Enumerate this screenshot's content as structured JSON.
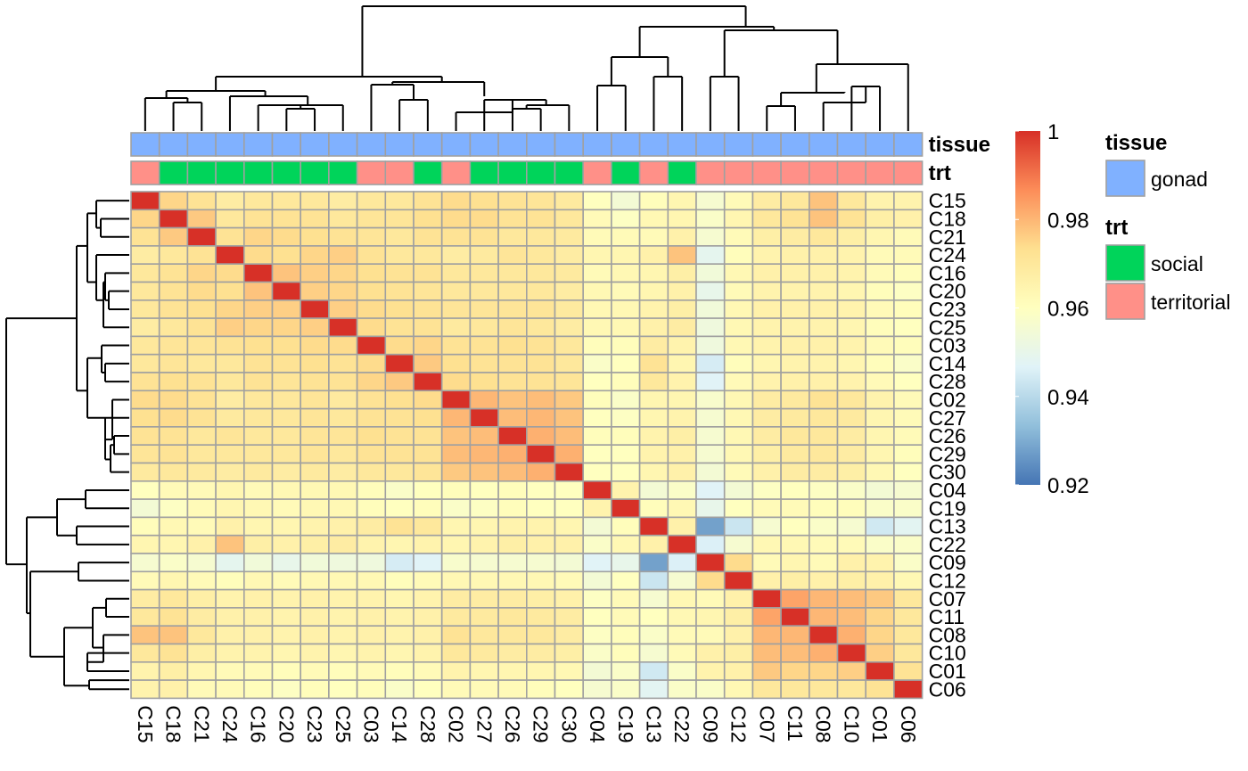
{
  "chart_data": {
    "type": "heatmap",
    "title": "",
    "rows": [
      "C15",
      "C18",
      "C21",
      "C24",
      "C16",
      "C20",
      "C23",
      "C25",
      "C03",
      "C14",
      "C28",
      "C02",
      "C27",
      "C26",
      "C29",
      "C30",
      "C04",
      "C19",
      "C13",
      "C22",
      "C09",
      "C12",
      "C07",
      "C11",
      "C08",
      "C10",
      "C01",
      "C06"
    ],
    "columns": [
      "C15",
      "C18",
      "C21",
      "C24",
      "C16",
      "C20",
      "C23",
      "C25",
      "C03",
      "C14",
      "C28",
      "C02",
      "C27",
      "C26",
      "C29",
      "C30",
      "C04",
      "C19",
      "C13",
      "C22",
      "C09",
      "C12",
      "C07",
      "C11",
      "C08",
      "C10",
      "C01",
      "C06"
    ],
    "values": [
      [
        1.0,
        0.975,
        0.972,
        0.968,
        0.97,
        0.97,
        0.97,
        0.968,
        0.97,
        0.97,
        0.972,
        0.974,
        0.973,
        0.972,
        0.971,
        0.969,
        0.96,
        0.955,
        0.961,
        0.964,
        0.956,
        0.962,
        0.968,
        0.97,
        0.978,
        0.97,
        0.965,
        0.965
      ],
      [
        0.975,
        1.0,
        0.977,
        0.97,
        0.972,
        0.972,
        0.972,
        0.97,
        0.971,
        0.971,
        0.973,
        0.974,
        0.974,
        0.972,
        0.972,
        0.97,
        0.962,
        0.959,
        0.963,
        0.964,
        0.958,
        0.964,
        0.97,
        0.972,
        0.978,
        0.972,
        0.967,
        0.966
      ],
      [
        0.972,
        0.977,
        1.0,
        0.972,
        0.975,
        0.974,
        0.973,
        0.972,
        0.971,
        0.97,
        0.972,
        0.972,
        0.972,
        0.97,
        0.97,
        0.969,
        0.962,
        0.962,
        0.962,
        0.966,
        0.956,
        0.962,
        0.967,
        0.968,
        0.97,
        0.967,
        0.964,
        0.962
      ],
      [
        0.968,
        0.97,
        0.972,
        1.0,
        0.974,
        0.973,
        0.975,
        0.976,
        0.972,
        0.97,
        0.97,
        0.968,
        0.969,
        0.971,
        0.97,
        0.968,
        0.964,
        0.964,
        0.966,
        0.978,
        0.949,
        0.961,
        0.965,
        0.966,
        0.966,
        0.965,
        0.962,
        0.962
      ],
      [
        0.97,
        0.972,
        0.975,
        0.974,
        1.0,
        0.978,
        0.976,
        0.975,
        0.973,
        0.972,
        0.972,
        0.97,
        0.97,
        0.97,
        0.97,
        0.969,
        0.962,
        0.963,
        0.964,
        0.967,
        0.954,
        0.963,
        0.966,
        0.966,
        0.966,
        0.965,
        0.962,
        0.961
      ],
      [
        0.97,
        0.972,
        0.974,
        0.973,
        0.978,
        1.0,
        0.976,
        0.975,
        0.973,
        0.972,
        0.971,
        0.97,
        0.97,
        0.97,
        0.97,
        0.968,
        0.963,
        0.962,
        0.964,
        0.966,
        0.95,
        0.962,
        0.965,
        0.965,
        0.965,
        0.964,
        0.961,
        0.959
      ],
      [
        0.97,
        0.972,
        0.973,
        0.975,
        0.976,
        0.976,
        1.0,
        0.976,
        0.974,
        0.973,
        0.972,
        0.971,
        0.971,
        0.971,
        0.971,
        0.969,
        0.963,
        0.963,
        0.965,
        0.967,
        0.954,
        0.963,
        0.966,
        0.966,
        0.966,
        0.965,
        0.962,
        0.961
      ],
      [
        0.968,
        0.97,
        0.972,
        0.976,
        0.975,
        0.975,
        0.976,
        1.0,
        0.974,
        0.972,
        0.972,
        0.969,
        0.97,
        0.971,
        0.97,
        0.968,
        0.963,
        0.963,
        0.966,
        0.968,
        0.953,
        0.963,
        0.965,
        0.965,
        0.965,
        0.964,
        0.961,
        0.96
      ],
      [
        0.97,
        0.971,
        0.971,
        0.972,
        0.973,
        0.973,
        0.974,
        0.974,
        1.0,
        0.974,
        0.975,
        0.972,
        0.972,
        0.973,
        0.972,
        0.97,
        0.961,
        0.961,
        0.968,
        0.965,
        0.953,
        0.963,
        0.965,
        0.966,
        0.966,
        0.965,
        0.962,
        0.961
      ],
      [
        0.97,
        0.971,
        0.97,
        0.97,
        0.972,
        0.972,
        0.973,
        0.972,
        0.974,
        1.0,
        0.977,
        0.973,
        0.972,
        0.972,
        0.972,
        0.97,
        0.958,
        0.96,
        0.972,
        0.964,
        0.945,
        0.961,
        0.964,
        0.965,
        0.965,
        0.964,
        0.961,
        0.958
      ],
      [
        0.972,
        0.973,
        0.972,
        0.97,
        0.972,
        0.971,
        0.972,
        0.972,
        0.975,
        0.977,
        1.0,
        0.974,
        0.973,
        0.972,
        0.972,
        0.971,
        0.96,
        0.961,
        0.97,
        0.965,
        0.947,
        0.962,
        0.965,
        0.966,
        0.966,
        0.965,
        0.962,
        0.96
      ],
      [
        0.974,
        0.974,
        0.972,
        0.968,
        0.97,
        0.97,
        0.971,
        0.969,
        0.972,
        0.973,
        0.974,
        1.0,
        0.98,
        0.978,
        0.979,
        0.977,
        0.961,
        0.958,
        0.964,
        0.964,
        0.957,
        0.963,
        0.968,
        0.969,
        0.972,
        0.97,
        0.965,
        0.962
      ],
      [
        0.973,
        0.974,
        0.972,
        0.969,
        0.97,
        0.97,
        0.971,
        0.97,
        0.972,
        0.972,
        0.973,
        0.98,
        1.0,
        0.979,
        0.98,
        0.978,
        0.96,
        0.959,
        0.964,
        0.965,
        0.956,
        0.963,
        0.968,
        0.969,
        0.97,
        0.969,
        0.964,
        0.962
      ],
      [
        0.972,
        0.972,
        0.97,
        0.971,
        0.97,
        0.97,
        0.971,
        0.971,
        0.973,
        0.972,
        0.972,
        0.978,
        0.979,
        1.0,
        0.981,
        0.979,
        0.961,
        0.961,
        0.965,
        0.967,
        0.956,
        0.963,
        0.968,
        0.97,
        0.97,
        0.968,
        0.964,
        0.962
      ],
      [
        0.971,
        0.972,
        0.97,
        0.97,
        0.97,
        0.97,
        0.971,
        0.97,
        0.972,
        0.972,
        0.972,
        0.979,
        0.98,
        0.981,
        1.0,
        0.981,
        0.96,
        0.96,
        0.965,
        0.966,
        0.956,
        0.963,
        0.967,
        0.969,
        0.97,
        0.968,
        0.964,
        0.961
      ],
      [
        0.969,
        0.97,
        0.969,
        0.968,
        0.969,
        0.968,
        0.969,
        0.968,
        0.97,
        0.97,
        0.971,
        0.977,
        0.978,
        0.979,
        0.981,
        1.0,
        0.96,
        0.96,
        0.964,
        0.966,
        0.955,
        0.962,
        0.966,
        0.968,
        0.968,
        0.967,
        0.963,
        0.96
      ],
      [
        0.96,
        0.962,
        0.962,
        0.964,
        0.962,
        0.963,
        0.963,
        0.963,
        0.961,
        0.958,
        0.96,
        0.961,
        0.96,
        0.961,
        0.96,
        0.96,
        1.0,
        0.965,
        0.955,
        0.958,
        0.947,
        0.955,
        0.959,
        0.96,
        0.959,
        0.958,
        0.955,
        0.956
      ],
      [
        0.955,
        0.959,
        0.962,
        0.964,
        0.963,
        0.962,
        0.963,
        0.963,
        0.961,
        0.96,
        0.961,
        0.958,
        0.959,
        0.961,
        0.96,
        0.96,
        0.965,
        1.0,
        0.961,
        0.963,
        0.95,
        0.96,
        0.962,
        0.962,
        0.961,
        0.961,
        0.958,
        0.958
      ],
      [
        0.961,
        0.963,
        0.962,
        0.966,
        0.964,
        0.964,
        0.965,
        0.966,
        0.968,
        0.972,
        0.97,
        0.964,
        0.964,
        0.965,
        0.965,
        0.964,
        0.955,
        0.961,
        1.0,
        0.966,
        0.928,
        0.943,
        0.956,
        0.96,
        0.958,
        0.956,
        0.944,
        0.948
      ],
      [
        0.964,
        0.964,
        0.966,
        0.978,
        0.967,
        0.966,
        0.967,
        0.968,
        0.965,
        0.964,
        0.965,
        0.964,
        0.965,
        0.967,
        0.966,
        0.966,
        0.958,
        0.963,
        0.966,
        1.0,
        0.946,
        0.956,
        0.963,
        0.963,
        0.962,
        0.962,
        0.958,
        0.958
      ],
      [
        0.956,
        0.958,
        0.956,
        0.949,
        0.954,
        0.95,
        0.954,
        0.953,
        0.953,
        0.945,
        0.947,
        0.957,
        0.956,
        0.956,
        0.956,
        0.955,
        0.947,
        0.95,
        0.928,
        0.946,
        1.0,
        0.974,
        0.962,
        0.964,
        0.962,
        0.966,
        0.965,
        0.958
      ],
      [
        0.962,
        0.964,
        0.962,
        0.961,
        0.963,
        0.962,
        0.963,
        0.963,
        0.963,
        0.961,
        0.962,
        0.963,
        0.963,
        0.963,
        0.963,
        0.962,
        0.955,
        0.96,
        0.943,
        0.956,
        0.974,
        1.0,
        0.966,
        0.967,
        0.966,
        0.967,
        0.966,
        0.963
      ],
      [
        0.968,
        0.97,
        0.967,
        0.965,
        0.966,
        0.965,
        0.966,
        0.965,
        0.965,
        0.964,
        0.965,
        0.968,
        0.968,
        0.968,
        0.967,
        0.966,
        0.959,
        0.962,
        0.956,
        0.963,
        0.962,
        0.966,
        1.0,
        0.983,
        0.98,
        0.979,
        0.977,
        0.97
      ],
      [
        0.97,
        0.972,
        0.968,
        0.966,
        0.966,
        0.965,
        0.966,
        0.965,
        0.966,
        0.965,
        0.966,
        0.969,
        0.969,
        0.97,
        0.969,
        0.968,
        0.96,
        0.962,
        0.96,
        0.963,
        0.964,
        0.967,
        0.983,
        1.0,
        0.98,
        0.979,
        0.975,
        0.97
      ],
      [
        0.978,
        0.978,
        0.97,
        0.966,
        0.966,
        0.965,
        0.966,
        0.965,
        0.966,
        0.965,
        0.966,
        0.972,
        0.97,
        0.97,
        0.97,
        0.968,
        0.959,
        0.961,
        0.958,
        0.962,
        0.962,
        0.966,
        0.98,
        0.98,
        1.0,
        0.981,
        0.975,
        0.97
      ],
      [
        0.97,
        0.972,
        0.967,
        0.965,
        0.965,
        0.964,
        0.965,
        0.964,
        0.965,
        0.964,
        0.965,
        0.97,
        0.969,
        0.968,
        0.968,
        0.967,
        0.958,
        0.961,
        0.956,
        0.962,
        0.966,
        0.967,
        0.979,
        0.979,
        0.981,
        1.0,
        0.976,
        0.97
      ],
      [
        0.965,
        0.967,
        0.964,
        0.962,
        0.962,
        0.961,
        0.962,
        0.961,
        0.962,
        0.961,
        0.962,
        0.965,
        0.964,
        0.964,
        0.964,
        0.963,
        0.955,
        0.958,
        0.944,
        0.958,
        0.965,
        0.966,
        0.977,
        0.975,
        0.975,
        0.976,
        1.0,
        0.972
      ],
      [
        0.965,
        0.966,
        0.962,
        0.962,
        0.961,
        0.959,
        0.961,
        0.96,
        0.961,
        0.958,
        0.96,
        0.962,
        0.962,
        0.962,
        0.961,
        0.96,
        0.956,
        0.958,
        0.948,
        0.958,
        0.958,
        0.963,
        0.97,
        0.97,
        0.97,
        0.97,
        0.972,
        1.0
      ]
    ],
    "color_scale": {
      "min": 0.92,
      "max": 1,
      "stops": [
        "#4575B4",
        "#91BFDB",
        "#E0F3F8",
        "#FFFFBF",
        "#FEE090",
        "#FC8D59",
        "#D73027"
      ],
      "ticks": [
        "1",
        "0.98",
        "0.96",
        "0.94",
        "0.92"
      ],
      "tick_values": [
        1,
        0.98,
        0.96,
        0.94,
        0.92
      ]
    },
    "annotations": {
      "tissue": [
        "gonad",
        "gonad",
        "gonad",
        "gonad",
        "gonad",
        "gonad",
        "gonad",
        "gonad",
        "gonad",
        "gonad",
        "gonad",
        "gonad",
        "gonad",
        "gonad",
        "gonad",
        "gonad",
        "gonad",
        "gonad",
        "gonad",
        "gonad",
        "gonad",
        "gonad",
        "gonad",
        "gonad",
        "gonad",
        "gonad",
        "gonad",
        "gonad"
      ],
      "trt": [
        "territorial",
        "social",
        "social",
        "social",
        "social",
        "social",
        "social",
        "social",
        "territorial",
        "territorial",
        "social",
        "territorial",
        "social",
        "social",
        "social",
        "social",
        "territorial",
        "social",
        "territorial",
        "social",
        "territorial",
        "territorial",
        "territorial",
        "territorial",
        "territorial",
        "territorial",
        "territorial",
        "territorial"
      ]
    },
    "annotation_labels": {
      "tissue": "tissue",
      "trt": "trt"
    },
    "annotation_colors": {
      "tissue": {
        "gonad": "#80B1FF"
      },
      "trt": {
        "social": "#00D45A",
        "territorial": "#FF9088"
      }
    },
    "legend": {
      "position": "right",
      "groups": [
        {
          "title": "tissue",
          "items": [
            {
              "label": "gonad",
              "color": "#80B1FF"
            }
          ]
        },
        {
          "title": "trt",
          "items": [
            {
              "label": "social",
              "color": "#00D45A"
            },
            {
              "label": "territorial",
              "color": "#FF9088"
            }
          ]
        }
      ]
    },
    "grid_color": "#A0A0A0",
    "dendrogram": "both"
  }
}
